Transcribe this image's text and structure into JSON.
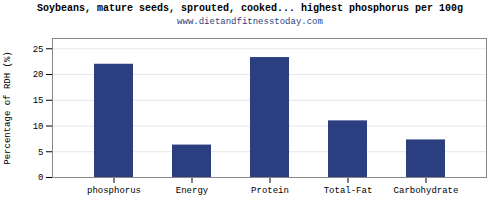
{
  "chart_data": {
    "type": "bar",
    "title": "Soybeans, mature seeds, sprouted, cooked... highest phosphorus per 100g",
    "subtitle": "www.dietandfitnesstoday.com",
    "categories": [
      "phosphorus",
      "Energy",
      "Protein",
      "Total-Fat",
      "Carbohydrate"
    ],
    "values": [
      22.0,
      6.3,
      23.3,
      11.0,
      7.3
    ],
    "color": "#2b3f80",
    "ylabel": "Percentage of RDH (%)",
    "ylim": [
      0,
      27
    ],
    "yticks": [
      0,
      5,
      10,
      15,
      20,
      25
    ],
    "grid": true
  }
}
